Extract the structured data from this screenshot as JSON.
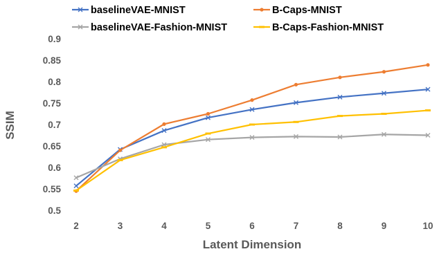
{
  "chart_data": {
    "type": "line",
    "title": "",
    "xlabel": "Latent Dimension",
    "ylabel": "SSIM",
    "x": [
      2,
      3,
      4,
      5,
      6,
      7,
      8,
      9,
      10
    ],
    "xlim": [
      2,
      10
    ],
    "ylim": [
      0.5,
      0.9
    ],
    "yticks": [
      "0.5",
      "0.55",
      "0.6",
      "0.65",
      "0.7",
      "0.75",
      "0.8",
      "0.85",
      "0.9"
    ],
    "grid": false,
    "legend_position": "top",
    "series": [
      {
        "name": "baselineVAE-MNIST",
        "color": "#4472C4",
        "marker": "x",
        "values": [
          0.557,
          0.642,
          0.686,
          0.716,
          0.735,
          0.751,
          0.764,
          0.773,
          0.782
        ]
      },
      {
        "name": "B-Caps-MNIST",
        "color": "#ED7D31",
        "marker": "dot",
        "values": [
          0.545,
          0.64,
          0.701,
          0.725,
          0.757,
          0.793,
          0.81,
          0.823,
          0.839
        ]
      },
      {
        "name": "baselineVAE-Fashion-MNIST",
        "color": "#A5A5A5",
        "marker": "x",
        "values": [
          0.576,
          0.62,
          0.653,
          0.665,
          0.67,
          0.672,
          0.671,
          0.677,
          0.675
        ]
      },
      {
        "name": "B-Caps-Fashion-MNIST",
        "color": "#FFC000",
        "marker": "dash",
        "values": [
          0.546,
          0.617,
          0.647,
          0.679,
          0.7,
          0.706,
          0.72,
          0.725,
          0.733
        ]
      }
    ]
  }
}
